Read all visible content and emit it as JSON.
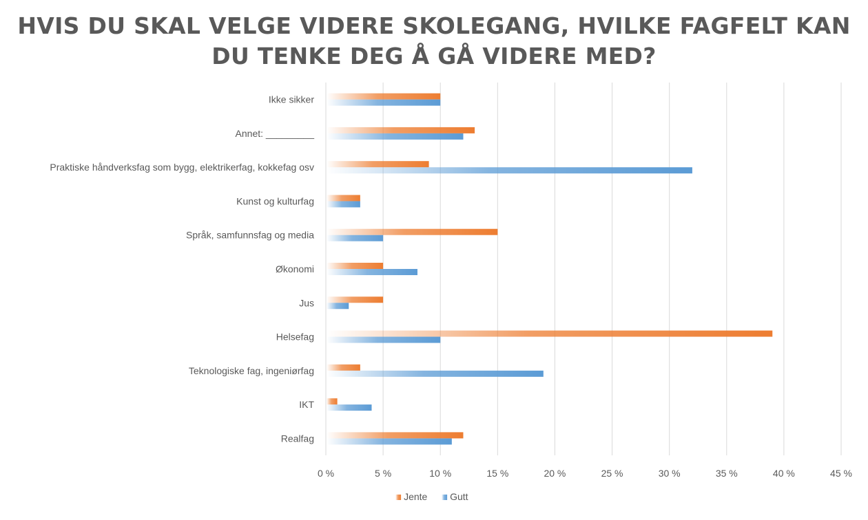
{
  "chart_data": {
    "type": "bar",
    "orientation": "horizontal",
    "title_lines": [
      "HVIS DU SKAL VELGE VIDERE SKOLEGANG, HVILKE FAGFELT KAN",
      "DU TENKE DEG Å GÅ VIDERE MED?"
    ],
    "xlabel": "",
    "ylabel": "",
    "xlim": [
      0,
      45
    ],
    "x_ticks": [
      "0 %",
      "5 %",
      "10 %",
      "15 %",
      "20 %",
      "25 %",
      "30 %",
      "35 %",
      "40 %",
      "45 %"
    ],
    "x_tick_values": [
      0,
      5,
      10,
      15,
      20,
      25,
      30,
      35,
      40,
      45
    ],
    "grid": "vertical",
    "legend_position": "bottom",
    "categories": [
      "Ikke sikker",
      "Annet: _________",
      "Praktiske håndverksfag som bygg, elektrikerfag, kokkefag osv",
      "Kunst og kulturfag",
      "Språk, samfunnsfag og media",
      "Økonomi",
      "Jus",
      "Helsefag",
      "Teknologiske fag, ingeniørfag",
      "IKT",
      "Realfag"
    ],
    "series": [
      {
        "name": "Jente",
        "color": "#ED7D31",
        "values": [
          10,
          13,
          9,
          3,
          15,
          5,
          5,
          39,
          3,
          1,
          12
        ]
      },
      {
        "name": "Gutt",
        "color": "#5B9BD5",
        "values": [
          10,
          12,
          32,
          3,
          5,
          8,
          2,
          10,
          19,
          4,
          11
        ]
      }
    ]
  }
}
